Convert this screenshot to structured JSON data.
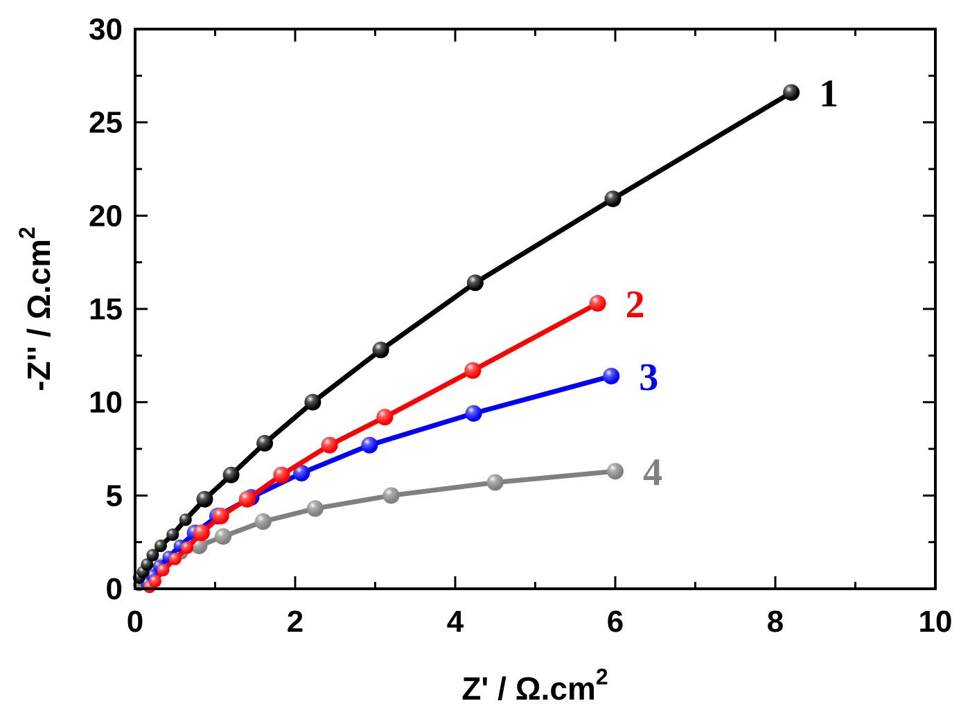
{
  "chart_data": {
    "type": "line",
    "xlabel": "Z' / Ω.cm",
    "xlabel_sup": "2",
    "ylabel": "-Z'' / Ω.cm",
    "ylabel_sup": "2",
    "xlim": [
      0,
      10
    ],
    "ylim": [
      0,
      30
    ],
    "xticks": [
      "0",
      "2",
      "4",
      "6",
      "8",
      "10"
    ],
    "yticks": [
      "0",
      "5",
      "10",
      "15",
      "20",
      "25",
      "30"
    ],
    "grid": false,
    "series": [
      {
        "name": "1",
        "color": "#000000",
        "x": [
          0.05,
          0.1,
          0.15,
          0.22,
          0.32,
          0.47,
          0.63,
          0.87,
          1.2,
          1.62,
          2.22,
          3.07,
          4.25,
          5.97,
          8.2
        ],
        "y": [
          0.6,
          0.9,
          1.3,
          1.8,
          2.3,
          2.9,
          3.7,
          4.8,
          6.1,
          7.8,
          10.0,
          12.8,
          16.4,
          20.9,
          26.6
        ]
      },
      {
        "name": "2",
        "color": "#ff0000",
        "x": [
          0.18,
          0.25,
          0.35,
          0.5,
          0.65,
          0.83,
          1.07,
          1.4,
          1.83,
          2.43,
          3.12,
          4.22,
          5.78
        ],
        "y": [
          0.1,
          0.4,
          1.0,
          1.6,
          2.2,
          3.0,
          3.9,
          4.8,
          6.1,
          7.7,
          9.2,
          11.7,
          15.3
        ]
      },
      {
        "name": "3",
        "color": "#0000ff",
        "x": [
          0.15,
          0.22,
          0.3,
          0.42,
          0.56,
          0.75,
          1.03,
          1.45,
          2.08,
          2.93,
          4.23,
          5.95
        ],
        "y": [
          0.3,
          0.7,
          1.2,
          1.7,
          2.3,
          3.0,
          3.9,
          4.9,
          6.2,
          7.7,
          9.4,
          11.4
        ]
      },
      {
        "name": "4",
        "color": "#808080",
        "x": [
          0.05,
          0.1,
          0.16,
          0.23,
          0.32,
          0.43,
          0.58,
          0.8,
          1.1,
          1.6,
          2.25,
          3.2,
          4.5,
          6.0
        ],
        "y": [
          0.2,
          0.4,
          0.7,
          1.0,
          1.3,
          1.6,
          1.9,
          2.3,
          2.8,
          3.6,
          4.3,
          5.0,
          5.7,
          6.3
        ]
      }
    ]
  }
}
